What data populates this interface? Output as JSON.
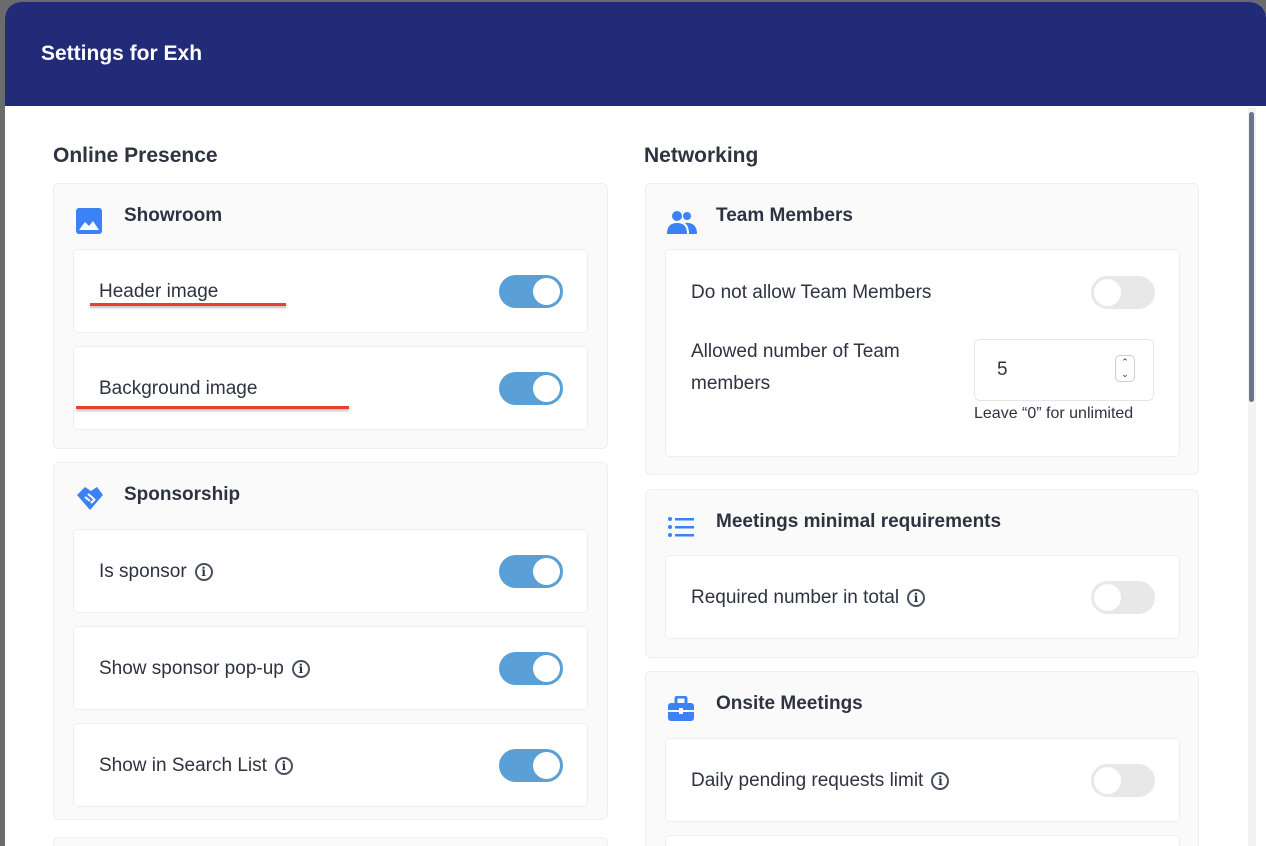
{
  "title": "Settings for Exh",
  "left": {
    "section": "Online Presence",
    "showroom": {
      "title": "Showroom",
      "icon": "image-icon",
      "items": [
        {
          "label": "Header image",
          "on": true
        },
        {
          "label": "Background image",
          "on": true
        }
      ]
    },
    "sponsorship": {
      "title": "Sponsorship",
      "icon": "handshake-icon",
      "items": [
        {
          "label": "Is sponsor",
          "on": true,
          "info": true
        },
        {
          "label": "Show sponsor pop-up",
          "on": true,
          "info": true
        },
        {
          "label": "Show in Search List",
          "on": true,
          "info": true
        }
      ]
    }
  },
  "right": {
    "section": "Networking",
    "team": {
      "title": "Team Members",
      "icon": "users-icon",
      "toggle_label": "Do not allow Team Members",
      "toggle_on": false,
      "allowed_label": "Allowed number of Team members",
      "allowed_value": "5",
      "hint": "Leave “0” for unlimited"
    },
    "meetings": {
      "title": "Meetings minimal requirements",
      "icon": "list-icon",
      "item": {
        "label": "Required number in total",
        "on": false
      }
    },
    "onsite": {
      "title": "Onsite Meetings",
      "icon": "briefcase-icon",
      "item": {
        "label": "Daily pending requests limit",
        "on": false
      }
    }
  },
  "colors": {
    "header": "#212b78",
    "accent": "#3b82f6",
    "toggle_on": "#5a9fd6",
    "annotation": "#e8402a"
  }
}
